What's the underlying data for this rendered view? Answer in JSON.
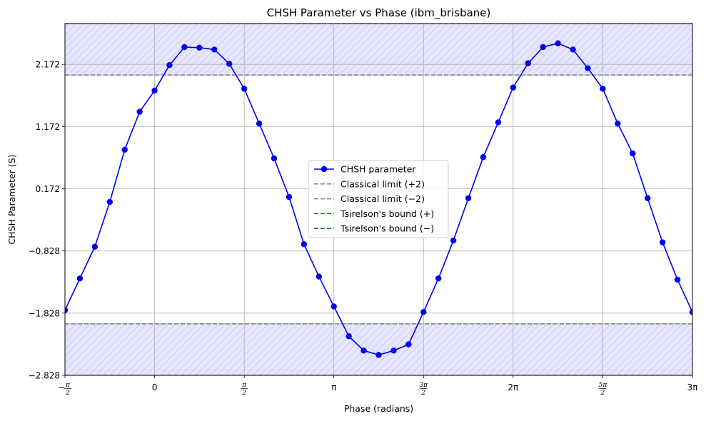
{
  "chart_data": {
    "type": "line",
    "title": "CHSH Parameter vs Phase (ibm_brisbane)",
    "xlabel": "Phase (radians)",
    "ylabel": "CHSH Parameter (S)",
    "xlim": [
      -1.5708,
      9.4248
    ],
    "ylim": [
      -2.828,
      2.828
    ],
    "x_ticks": [
      {
        "value": -1.5708,
        "label": "−π/2",
        "num": "π",
        "den": "2",
        "neg": true
      },
      {
        "value": 0,
        "label": "0"
      },
      {
        "value": 1.5708,
        "label": "π/2",
        "num": "π",
        "den": "2"
      },
      {
        "value": 3.1416,
        "label": "π"
      },
      {
        "value": 4.7124,
        "label": "3π/2",
        "num": "3π",
        "den": "2"
      },
      {
        "value": 6.2832,
        "label": "2π"
      },
      {
        "value": 7.854,
        "label": "5π/2",
        "num": "5π",
        "den": "2"
      },
      {
        "value": 9.4248,
        "label": "3π"
      }
    ],
    "y_ticks": [
      {
        "value": -2.828,
        "label": "−2.828"
      },
      {
        "value": -1.828,
        "label": "−1.828"
      },
      {
        "value": -0.828,
        "label": "−0.828"
      },
      {
        "value": 0.172,
        "label": "0.172"
      },
      {
        "value": 1.172,
        "label": "1.172"
      },
      {
        "value": 2.172,
        "label": "2.172"
      }
    ],
    "grid": true,
    "legend_position": "center",
    "series": [
      {
        "name": "CHSH parameter",
        "color": "#0000ee",
        "marker": "circle",
        "x": [
          -1.5708,
          -1.309,
          -1.0472,
          -0.7854,
          -0.5236,
          -0.2618,
          0.0,
          0.2618,
          0.5236,
          0.7854,
          1.0472,
          1.309,
          1.5708,
          1.8326,
          2.0944,
          2.3562,
          2.618,
          2.8798,
          3.1416,
          3.4034,
          3.6652,
          3.927,
          4.1888,
          4.4506,
          4.7124,
          4.9742,
          5.236,
          5.4978,
          5.7596,
          6.0214,
          6.2832,
          6.545,
          6.8068,
          7.0686,
          7.3304,
          7.5922,
          7.854,
          8.1158,
          8.3776,
          8.6394,
          8.9012,
          9.163,
          9.4248
        ],
        "y": [
          -1.78,
          -1.27,
          -0.76,
          -0.04,
          0.8,
          1.41,
          1.75,
          2.16,
          2.45,
          2.44,
          2.41,
          2.18,
          1.78,
          1.22,
          0.66,
          0.04,
          -0.72,
          -1.24,
          -1.72,
          -2.2,
          -2.43,
          -2.5,
          -2.43,
          -2.33,
          -1.81,
          -1.27,
          -0.66,
          0.02,
          0.68,
          1.24,
          1.8,
          2.19,
          2.45,
          2.51,
          2.41,
          2.11,
          1.78,
          1.22,
          0.74,
          0.02,
          -0.69,
          -1.29,
          -1.81
        ]
      },
      {
        "name": "Classical limit (+2)",
        "color": "#808080",
        "style": "dashed",
        "y_const": 2.0
      },
      {
        "name": "Classical limit (−2)",
        "color": "#808080",
        "style": "dashed",
        "y_const": -2.0
      },
      {
        "name": "Tsirelson's bound (+)",
        "color": "#008000",
        "style": "dashed",
        "y_const": 2.828
      },
      {
        "name": "Tsirelson's bound (−)",
        "color": "#008000",
        "style": "dashed",
        "y_const": -2.828
      }
    ],
    "shaded_regions": [
      {
        "y_from": 2.0,
        "y_to": 2.828,
        "color": "#e6e6ff",
        "hatch": "#c8c8f5",
        "edge": "#b0b0ee"
      },
      {
        "y_from": -2.828,
        "y_to": -2.0,
        "color": "#e6e6ff",
        "hatch": "#c8c8f5",
        "edge": "#b0b0ee"
      }
    ]
  }
}
